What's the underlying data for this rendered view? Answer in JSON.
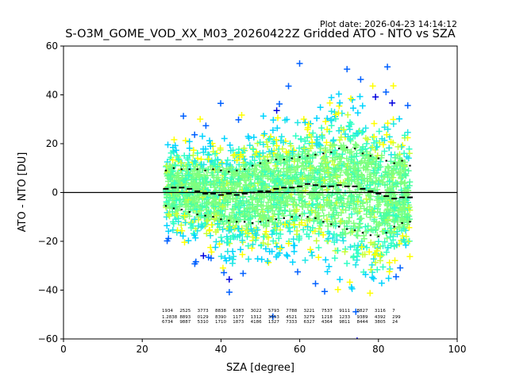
{
  "plot_date": "Plot date: 2026-04-23 14:14:12",
  "chart_data": {
    "type": "scatter",
    "title": "S-O3M_GOME_VOD_XX_M03_20260422Z Gridded ATO - NTO vs SZA",
    "xlabel": "SZA [degree]",
    "ylabel": "ATO - NTO [DU]",
    "xlim": [
      0,
      100
    ],
    "ylim": [
      -60,
      60
    ],
    "xticks": [
      0,
      20,
      40,
      60,
      80,
      100
    ],
    "yticks": [
      -60,
      -40,
      -20,
      0,
      20,
      40,
      60
    ],
    "grid": false,
    "zero_line": 0,
    "marker": "+",
    "point_colors": [
      "#7fff7f",
      "#4dff9f",
      "#30ffc5",
      "#1fe6e6",
      "#00d4ff",
      "#c8ff37",
      "#ffff00",
      "#0060ff",
      "#0000dd"
    ],
    "scatter_x_range": [
      26,
      88
    ],
    "series": [
      {
        "name": "mean",
        "x": [
          26,
          28,
          30,
          32,
          34,
          36,
          38,
          40,
          42,
          44,
          46,
          48,
          50,
          52,
          54,
          56,
          58,
          60,
          62,
          64,
          66,
          68,
          70,
          72,
          74,
          76,
          78,
          80,
          82,
          84,
          86,
          88
        ],
        "y": [
          1.5,
          2,
          2,
          1.5,
          0.5,
          -0.5,
          -0.5,
          -1,
          -0.5,
          -1,
          -0.5,
          0,
          0.5,
          0.5,
          1.5,
          2,
          2,
          2.5,
          3.5,
          3,
          2.5,
          2.5,
          3,
          2.5,
          2.5,
          1.5,
          0.5,
          -0.5,
          -1.5,
          -2.5,
          -2,
          -2
        ]
      },
      {
        "name": "mean + std",
        "x": [
          26,
          28,
          30,
          32,
          34,
          36,
          38,
          40,
          42,
          44,
          46,
          48,
          50,
          52,
          54,
          56,
          58,
          60,
          62,
          64,
          66,
          68,
          70,
          72,
          74,
          76,
          78,
          80,
          82,
          84,
          86,
          88
        ],
        "y": [
          9,
          10,
          9.5,
          9.5,
          9.5,
          9,
          9.5,
          9,
          8.5,
          9,
          9.5,
          11,
          12,
          13,
          13.5,
          13.5,
          14,
          14.5,
          15,
          15.5,
          16,
          16.5,
          18,
          18.5,
          18,
          16,
          15,
          14,
          13,
          12,
          13,
          11
        ]
      },
      {
        "name": "mean - std",
        "x": [
          26,
          28,
          30,
          32,
          34,
          36,
          38,
          40,
          42,
          44,
          46,
          48,
          50,
          52,
          54,
          56,
          58,
          60,
          62,
          64,
          66,
          68,
          70,
          72,
          74,
          76,
          78,
          80,
          82,
          84,
          86,
          88
        ],
        "y": [
          -5.5,
          -6.5,
          -7,
          -8,
          -9,
          -9.5,
          -10,
          -11,
          -11.5,
          -12,
          -12,
          -12.5,
          -12,
          -11.5,
          -11,
          -10.5,
          -10,
          -9.5,
          -10,
          -10.5,
          -12,
          -13,
          -14,
          -15,
          -15.5,
          -16.5,
          -17.5,
          -18,
          -16.5,
          -14,
          -12.5,
          -12
        ]
      }
    ],
    "count_annotations_y": [
      -49,
      -51.5,
      -53.5
    ],
    "count_annotations": [
      [
        "1934",
        "2525",
        "3773",
        "8838",
        "6383",
        "3022",
        "5793",
        "7788",
        "3221",
        "7537",
        "9111",
        "8827",
        "3116",
        "7"
      ],
      [
        "1.2838",
        "8893",
        "0129",
        "8390",
        "1177",
        "1312",
        "3553",
        "4521",
        "3279",
        "1218",
        "1233",
        "9389",
        "4392",
        "299"
      ],
      [
        "6734",
        "9887",
        "5310",
        "1710",
        "1873",
        "4186",
        "1327",
        "7333",
        "6327",
        "4364",
        "9811",
        "8444",
        "3805",
        "24"
      ]
    ]
  }
}
